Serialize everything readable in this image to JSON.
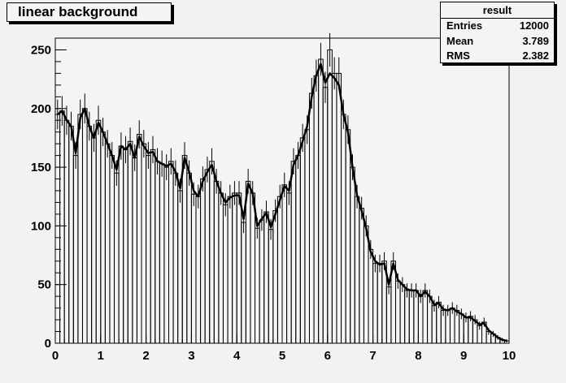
{
  "title": "linear background",
  "stats": {
    "title": "result",
    "rows": [
      {
        "label": "Entries",
        "value": "12000"
      },
      {
        "label": "Mean",
        "value": "3.789"
      },
      {
        "label": "RMS",
        "value": "2.382"
      }
    ]
  },
  "chart_data": {
    "type": "line",
    "title": "linear background",
    "xlim": [
      0,
      10
    ],
    "ylim": [
      0,
      260
    ],
    "xticks": [
      "0",
      "1",
      "2",
      "3",
      "4",
      "5",
      "6",
      "7",
      "8",
      "9",
      "10"
    ],
    "yticks": [
      "0",
      "50",
      "100",
      "150",
      "200",
      "250"
    ],
    "grid": false,
    "series": [
      {
        "style": "histogram",
        "bin_width": 0.1,
        "x": [
          0.05,
          0.15,
          0.25,
          0.35,
          0.45,
          0.55,
          0.65,
          0.75,
          0.85,
          0.95,
          1.05,
          1.15,
          1.25,
          1.35,
          1.45,
          1.55,
          1.65,
          1.75,
          1.85,
          1.95,
          2.05,
          2.15,
          2.25,
          2.35,
          2.45,
          2.55,
          2.65,
          2.75,
          2.85,
          2.95,
          3.05,
          3.15,
          3.25,
          3.35,
          3.45,
          3.55,
          3.65,
          3.75,
          3.85,
          3.95,
          4.05,
          4.15,
          4.25,
          4.35,
          4.45,
          4.55,
          4.65,
          4.75,
          4.85,
          4.95,
          5.05,
          5.15,
          5.25,
          5.35,
          5.45,
          5.55,
          5.65,
          5.75,
          5.85,
          5.95,
          6.05,
          6.15,
          6.25,
          6.35,
          6.45,
          6.55,
          6.65,
          6.75,
          6.85,
          6.95,
          7.05,
          7.15,
          7.25,
          7.35,
          7.45,
          7.55,
          7.65,
          7.75,
          7.85,
          7.95,
          8.05,
          8.15,
          8.25,
          8.35,
          8.45,
          8.55,
          8.65,
          8.75,
          8.85,
          8.95,
          9.05,
          9.15,
          9.25,
          9.35,
          9.45,
          9.55,
          9.65,
          9.75,
          9.85,
          9.95
        ],
        "values": [
          195,
          198,
          190,
          185,
          160,
          195,
          200,
          185,
          175,
          190,
          180,
          170,
          160,
          145,
          168,
          165,
          172,
          158,
          178,
          170,
          160,
          165,
          155,
          153,
          150,
          155,
          145,
          130,
          160,
          145,
          127,
          125,
          140,
          148,
          155,
          138,
          128,
          118,
          125,
          128,
          128,
          103,
          138,
          128,
          98,
          105,
          112,
          97,
          113,
          125,
          135,
          128,
          155,
          160,
          175,
          182,
          213,
          228,
          242,
          218,
          250,
          230,
          230,
          195,
          182,
          150,
          125,
          115,
          100,
          80,
          68,
          68,
          70,
          48,
          70,
          53,
          50,
          45,
          45,
          45,
          40,
          45,
          40,
          32,
          35,
          28,
          28,
          30,
          28,
          25,
          22,
          23,
          20,
          15,
          18,
          10,
          8,
          5,
          3,
          2
        ],
        "fit": [
          195,
          198,
          190,
          185,
          162,
          192,
          200,
          185,
          175,
          188,
          180,
          170,
          160,
          148,
          168,
          165,
          170,
          158,
          176,
          168,
          162,
          163,
          155,
          153,
          151,
          153,
          146,
          132,
          158,
          146,
          130,
          125,
          138,
          146,
          152,
          138,
          128,
          120,
          124,
          126,
          126,
          106,
          136,
          128,
          100,
          106,
          111,
          99,
          110,
          122,
          134,
          130,
          152,
          160,
          172,
          185,
          210,
          228,
          238,
          222,
          230,
          226,
          220,
          195,
          180,
          150,
          126,
          113,
          98,
          78,
          70,
          67,
          68,
          50,
          68,
          54,
          50,
          46,
          45,
          45,
          40,
          44,
          40,
          33,
          34,
          29,
          28,
          30,
          27,
          25,
          22,
          22,
          19,
          16,
          17,
          11,
          8,
          5,
          3,
          2
        ]
      }
    ]
  }
}
